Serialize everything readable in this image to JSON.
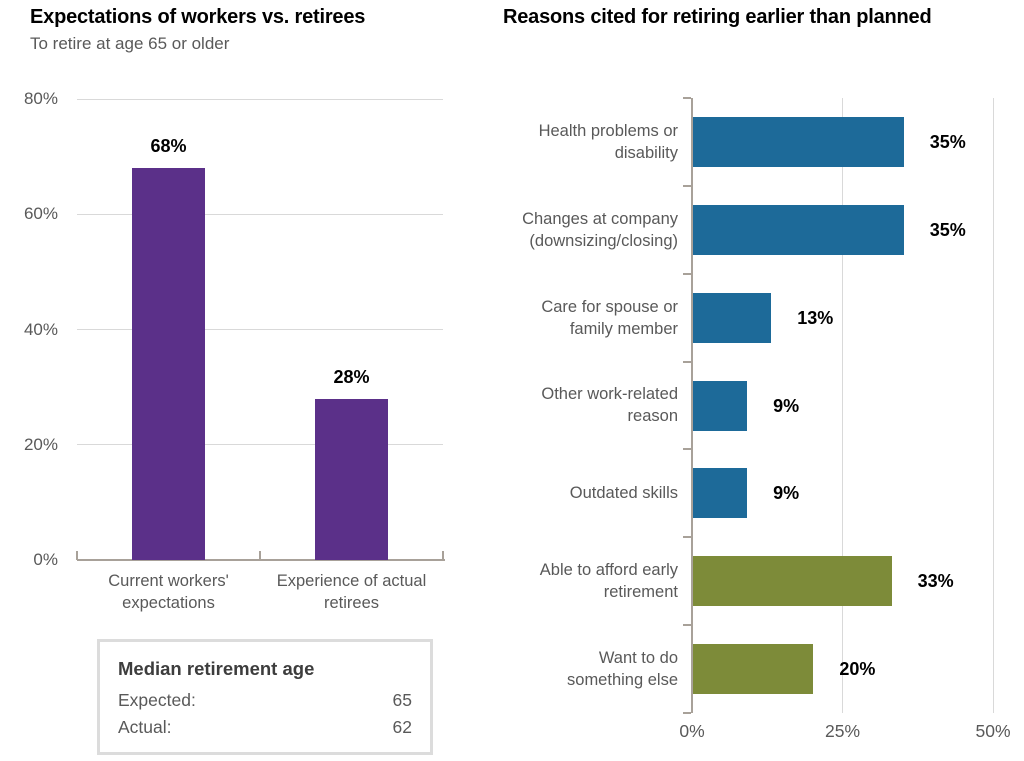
{
  "chart_data": [
    {
      "type": "bar",
      "orientation": "vertical",
      "title": "Expectations of workers vs. retirees",
      "subtitle": "To retire at age 65 or older",
      "categories": [
        "Current workers'\nexpectations",
        "Experience of actual\nretirees"
      ],
      "values": [
        68,
        28
      ],
      "data_labels": [
        "68%",
        "28%"
      ],
      "xlabel": "",
      "ylabel": "",
      "ylim": [
        0,
        80
      ],
      "y_tick_labels": [
        "0%",
        "20%",
        "40%",
        "60%",
        "80%"
      ],
      "grid": "horizontal",
      "legend": "none",
      "bar_color_hex": "#5b3089",
      "annotation_box": {
        "title": "Median retirement age",
        "rows": [
          {
            "label": "Expected:",
            "value": "65"
          },
          {
            "label": "Actual:",
            "value": "62"
          }
        ]
      }
    },
    {
      "type": "bar",
      "orientation": "horizontal",
      "title": "Reasons cited for retiring earlier than planned",
      "categories": [
        "Health problems or\ndisability",
        "Changes at company\n(downsizing/closing)",
        "Care for spouse or\nfamily member",
        "Other work-related\nreason",
        "Outdated skills",
        "Able to afford early\nretirement",
        "Want to do\nsomething else"
      ],
      "values": [
        35,
        35,
        13,
        9,
        9,
        33,
        20
      ],
      "data_labels": [
        "35%",
        "35%",
        "13%",
        "9%",
        "9%",
        "33%",
        "20%"
      ],
      "xlim": [
        0,
        50
      ],
      "x_tick_labels": [
        "0%",
        "25%",
        "50%"
      ],
      "grid": "vertical",
      "legend": "none",
      "bar_colors_hex": [
        "#1d6a99",
        "#1d6a99",
        "#1d6a99",
        "#1d6a99",
        "#1d6a99",
        "#7d8b39",
        "#7d8b39"
      ]
    }
  ],
  "style_colors": {
    "purple_bar": "#5b3089",
    "blue_bar": "#1d6a99",
    "olive_bar": "#7d8b39",
    "axis_gray": "#a8a199",
    "grid_gray": "#d9d9d9",
    "text_gray": "#595959"
  }
}
